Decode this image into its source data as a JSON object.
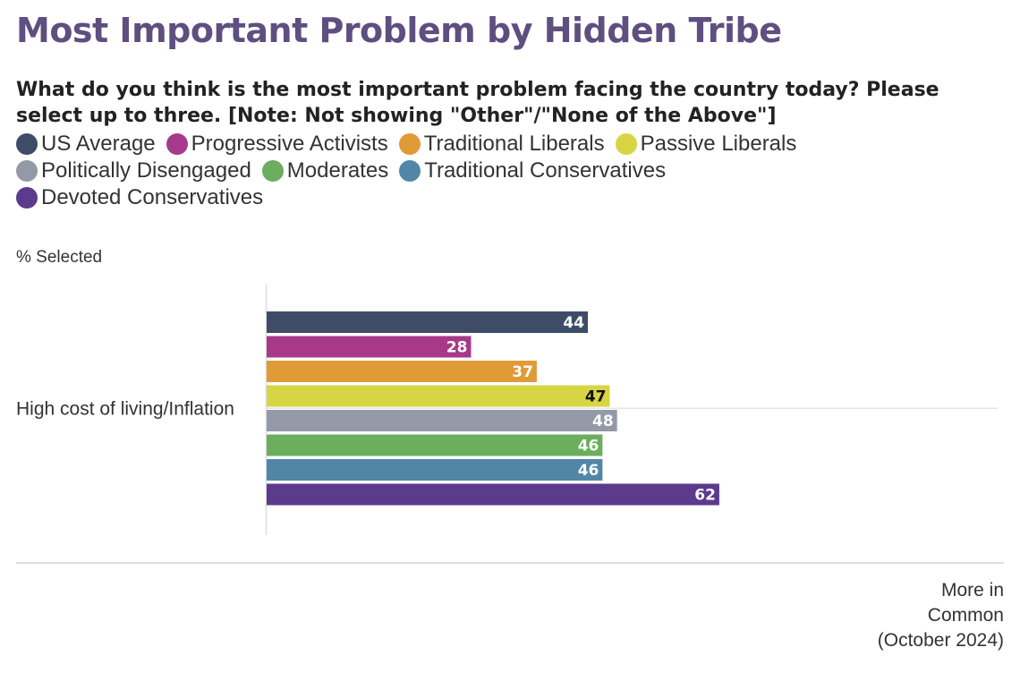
{
  "chart_data": {
    "type": "bar",
    "orientation": "horizontal",
    "title": "Most Important Problem by Hidden Tribe",
    "subtitle": "What do you think is the most important problem facing the country today? Please select up to three. [Note: Not showing \"Other\"/\"None of the Above\"]",
    "units_label": "% Selected",
    "categories": [
      "High cost of living/Inflation"
    ],
    "series": [
      {
        "name": "US Average",
        "color": "#3e4c68",
        "values": [
          44
        ],
        "label_color": "#ffffff"
      },
      {
        "name": "Progressive Activists",
        "color": "#a8398a",
        "values": [
          28
        ],
        "label_color": "#ffffff"
      },
      {
        "name": "Traditional Liberals",
        "color": "#e09a36",
        "values": [
          37
        ],
        "label_color": "#ffffff"
      },
      {
        "name": "Passive Liberals",
        "color": "#d8d544",
        "values": [
          47
        ],
        "label_color": "#111111"
      },
      {
        "name": "Politically Disengaged",
        "color": "#9499a8",
        "values": [
          48
        ],
        "label_color": "#ffffff"
      },
      {
        "name": "Moderates",
        "color": "#6aae5e",
        "values": [
          46
        ],
        "label_color": "#ffffff"
      },
      {
        "name": "Traditional Conservatives",
        "color": "#5286a6",
        "values": [
          46
        ],
        "label_color": "#ffffff"
      },
      {
        "name": "Devoted Conservatives",
        "color": "#5c3a8c",
        "values": [
          62
        ],
        "label_color": "#ffffff"
      }
    ],
    "legend_position": "top",
    "grid": false
  },
  "source": {
    "lines": [
      "More in",
      "Common",
      "(October 2024)"
    ]
  }
}
